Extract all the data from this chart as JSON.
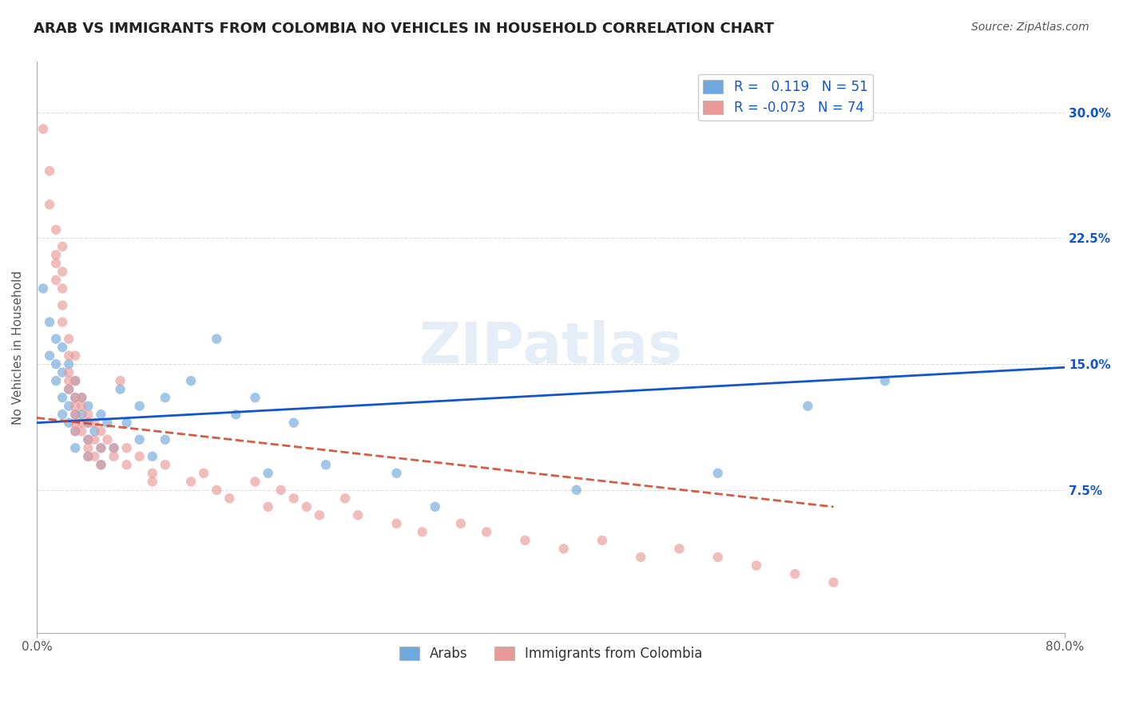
{
  "title": "ARAB VS IMMIGRANTS FROM COLOMBIA NO VEHICLES IN HOUSEHOLD CORRELATION CHART",
  "source": "Source: ZipAtlas.com",
  "ylabel": "No Vehicles in Household",
  "xlabel_ticks": [
    "0.0%",
    "80.0%"
  ],
  "ytick_labels": [
    "7.5%",
    "15.0%",
    "22.5%",
    "30.0%"
  ],
  "ytick_values": [
    0.075,
    0.15,
    0.225,
    0.3
  ],
  "xlim": [
    0.0,
    0.8
  ],
  "ylim": [
    -0.01,
    0.33
  ],
  "legend_blue_label": "Arabs",
  "legend_pink_label": "Immigrants from Colombia",
  "legend_blue_R": "R =   0.119",
  "legend_blue_N": "N = 51",
  "legend_pink_R": "R = -0.073",
  "legend_pink_N": "N = 74",
  "blue_color": "#6fa8dc",
  "pink_color": "#ea9999",
  "blue_line_color": "#1155cc",
  "pink_line_color": "#cc4125",
  "watermark": "ZIPatlas",
  "blue_scatter": [
    [
      0.005,
      0.195
    ],
    [
      0.01,
      0.175
    ],
    [
      0.01,
      0.155
    ],
    [
      0.015,
      0.165
    ],
    [
      0.015,
      0.15
    ],
    [
      0.015,
      0.14
    ],
    [
      0.02,
      0.16
    ],
    [
      0.02,
      0.145
    ],
    [
      0.02,
      0.13
    ],
    [
      0.02,
      0.12
    ],
    [
      0.025,
      0.15
    ],
    [
      0.025,
      0.135
    ],
    [
      0.025,
      0.125
    ],
    [
      0.025,
      0.115
    ],
    [
      0.03,
      0.14
    ],
    [
      0.03,
      0.13
    ],
    [
      0.03,
      0.12
    ],
    [
      0.03,
      0.11
    ],
    [
      0.03,
      0.1
    ],
    [
      0.035,
      0.13
    ],
    [
      0.035,
      0.12
    ],
    [
      0.04,
      0.125
    ],
    [
      0.04,
      0.115
    ],
    [
      0.04,
      0.105
    ],
    [
      0.04,
      0.095
    ],
    [
      0.045,
      0.11
    ],
    [
      0.05,
      0.12
    ],
    [
      0.05,
      0.1
    ],
    [
      0.05,
      0.09
    ],
    [
      0.055,
      0.115
    ],
    [
      0.06,
      0.1
    ],
    [
      0.065,
      0.135
    ],
    [
      0.07,
      0.115
    ],
    [
      0.08,
      0.125
    ],
    [
      0.08,
      0.105
    ],
    [
      0.09,
      0.095
    ],
    [
      0.1,
      0.13
    ],
    [
      0.1,
      0.105
    ],
    [
      0.12,
      0.14
    ],
    [
      0.14,
      0.165
    ],
    [
      0.155,
      0.12
    ],
    [
      0.17,
      0.13
    ],
    [
      0.18,
      0.085
    ],
    [
      0.2,
      0.115
    ],
    [
      0.225,
      0.09
    ],
    [
      0.28,
      0.085
    ],
    [
      0.31,
      0.065
    ],
    [
      0.42,
      0.075
    ],
    [
      0.53,
      0.085
    ],
    [
      0.6,
      0.125
    ],
    [
      0.66,
      0.14
    ]
  ],
  "pink_scatter": [
    [
      0.005,
      0.29
    ],
    [
      0.01,
      0.265
    ],
    [
      0.01,
      0.245
    ],
    [
      0.015,
      0.23
    ],
    [
      0.015,
      0.215
    ],
    [
      0.015,
      0.21
    ],
    [
      0.015,
      0.2
    ],
    [
      0.02,
      0.22
    ],
    [
      0.02,
      0.205
    ],
    [
      0.02,
      0.195
    ],
    [
      0.02,
      0.185
    ],
    [
      0.02,
      0.175
    ],
    [
      0.025,
      0.165
    ],
    [
      0.025,
      0.155
    ],
    [
      0.025,
      0.145
    ],
    [
      0.025,
      0.14
    ],
    [
      0.025,
      0.135
    ],
    [
      0.03,
      0.155
    ],
    [
      0.03,
      0.14
    ],
    [
      0.03,
      0.13
    ],
    [
      0.03,
      0.125
    ],
    [
      0.03,
      0.12
    ],
    [
      0.03,
      0.115
    ],
    [
      0.03,
      0.11
    ],
    [
      0.035,
      0.13
    ],
    [
      0.035,
      0.125
    ],
    [
      0.035,
      0.115
    ],
    [
      0.035,
      0.11
    ],
    [
      0.04,
      0.12
    ],
    [
      0.04,
      0.115
    ],
    [
      0.04,
      0.105
    ],
    [
      0.04,
      0.1
    ],
    [
      0.04,
      0.095
    ],
    [
      0.045,
      0.115
    ],
    [
      0.045,
      0.105
    ],
    [
      0.045,
      0.095
    ],
    [
      0.05,
      0.11
    ],
    [
      0.05,
      0.1
    ],
    [
      0.05,
      0.09
    ],
    [
      0.055,
      0.105
    ],
    [
      0.06,
      0.1
    ],
    [
      0.06,
      0.095
    ],
    [
      0.065,
      0.14
    ],
    [
      0.07,
      0.1
    ],
    [
      0.07,
      0.09
    ],
    [
      0.08,
      0.095
    ],
    [
      0.09,
      0.085
    ],
    [
      0.09,
      0.08
    ],
    [
      0.1,
      0.09
    ],
    [
      0.12,
      0.08
    ],
    [
      0.13,
      0.085
    ],
    [
      0.14,
      0.075
    ],
    [
      0.15,
      0.07
    ],
    [
      0.17,
      0.08
    ],
    [
      0.18,
      0.065
    ],
    [
      0.19,
      0.075
    ],
    [
      0.2,
      0.07
    ],
    [
      0.21,
      0.065
    ],
    [
      0.22,
      0.06
    ],
    [
      0.24,
      0.07
    ],
    [
      0.25,
      0.06
    ],
    [
      0.28,
      0.055
    ],
    [
      0.3,
      0.05
    ],
    [
      0.33,
      0.055
    ],
    [
      0.35,
      0.05
    ],
    [
      0.38,
      0.045
    ],
    [
      0.41,
      0.04
    ],
    [
      0.44,
      0.045
    ],
    [
      0.47,
      0.035
    ],
    [
      0.5,
      0.04
    ],
    [
      0.53,
      0.035
    ],
    [
      0.56,
      0.03
    ],
    [
      0.59,
      0.025
    ],
    [
      0.62,
      0.02
    ]
  ],
  "blue_trend_x": [
    0.0,
    0.8
  ],
  "blue_trend_y": [
    0.115,
    0.148
  ],
  "pink_trend_x": [
    0.0,
    0.62
  ],
  "pink_trend_y": [
    0.118,
    0.065
  ],
  "background_color": "#ffffff",
  "grid_color": "#dddddd",
  "title_fontsize": 13,
  "source_fontsize": 10,
  "axis_label_fontsize": 11,
  "tick_fontsize": 11,
  "legend_fontsize": 12,
  "scatter_size": 80,
  "scatter_alpha": 0.65
}
